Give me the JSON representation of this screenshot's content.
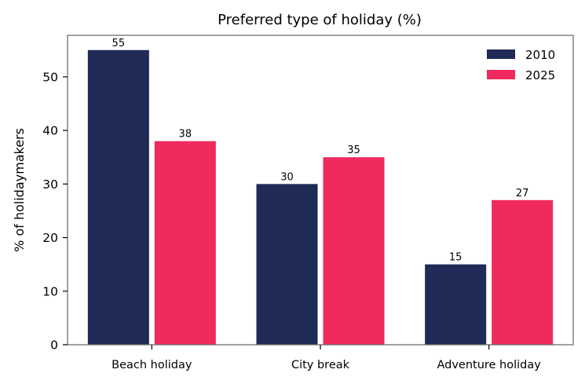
{
  "chart_data": {
    "type": "bar",
    "title": "Preferred type of holiday (%)",
    "xlabel": "",
    "ylabel": "% of holidaymakers",
    "categories": [
      "Beach holiday",
      "City break",
      "Adventure holiday"
    ],
    "series": [
      {
        "name": "2010",
        "values": [
          55,
          30,
          15
        ],
        "color": "#1f2a56"
      },
      {
        "name": "2025",
        "values": [
          38,
          35,
          27
        ],
        "color": "#ef2a5c"
      }
    ],
    "ylim": [
      0,
      57.75
    ],
    "yticks": [
      0,
      10,
      20,
      30,
      40,
      50
    ],
    "grid": false,
    "legend": "top-right",
    "data_labels": true
  }
}
